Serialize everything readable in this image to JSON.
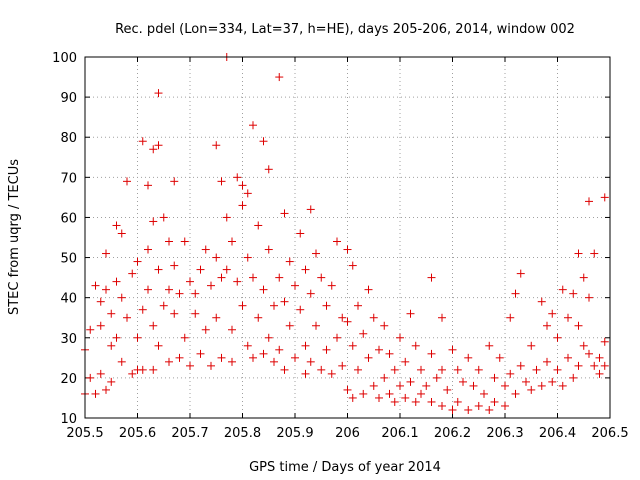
{
  "chart_data": {
    "type": "scatter",
    "title": "Rec. pdel (Lon=334, Lat=37, h=HE), days 205-206, 2014, window 002",
    "xlabel": "GPS time / Days of year 2014",
    "ylabel": "STEC from uqrg / TECUs",
    "xlim": [
      205.5,
      206.5
    ],
    "ylim": [
      10,
      100
    ],
    "xticks": [
      "205.5",
      "205.6",
      "205.7",
      "205.8",
      "205.9",
      "206",
      "206.1",
      "206.2",
      "206.3",
      "206.4",
      "206.5"
    ],
    "yticks": [
      "10",
      "20",
      "30",
      "40",
      "50",
      "60",
      "70",
      "80",
      "90",
      "100"
    ],
    "grid": true,
    "marker": "+",
    "color": "#dd0000",
    "series": [
      {
        "name": "STEC",
        "points": [
          [
            205.5,
            16
          ],
          [
            205.5,
            27
          ],
          [
            205.51,
            20
          ],
          [
            205.51,
            32
          ],
          [
            205.52,
            43
          ],
          [
            205.52,
            16
          ],
          [
            205.53,
            21
          ],
          [
            205.53,
            33
          ],
          [
            205.53,
            39
          ],
          [
            205.54,
            17
          ],
          [
            205.54,
            42
          ],
          [
            205.54,
            51
          ],
          [
            205.55,
            36
          ],
          [
            205.55,
            28
          ],
          [
            205.55,
            19
          ],
          [
            205.56,
            58
          ],
          [
            205.56,
            44
          ],
          [
            205.56,
            30
          ],
          [
            205.57,
            56
          ],
          [
            205.57,
            40
          ],
          [
            205.57,
            24
          ],
          [
            205.58,
            69
          ],
          [
            205.58,
            35
          ],
          [
            205.59,
            21
          ],
          [
            205.59,
            46
          ],
          [
            205.6,
            22
          ],
          [
            205.6,
            49
          ],
          [
            205.6,
            30
          ],
          [
            205.61,
            79
          ],
          [
            205.61,
            37
          ],
          [
            205.61,
            22
          ],
          [
            205.62,
            68
          ],
          [
            205.62,
            52
          ],
          [
            205.62,
            42
          ],
          [
            205.63,
            77
          ],
          [
            205.63,
            59
          ],
          [
            205.63,
            33
          ],
          [
            205.63,
            22
          ],
          [
            205.64,
            78
          ],
          [
            205.64,
            91
          ],
          [
            205.64,
            47
          ],
          [
            205.64,
            28
          ],
          [
            205.65,
            60
          ],
          [
            205.65,
            38
          ],
          [
            205.66,
            54
          ],
          [
            205.66,
            24
          ],
          [
            205.66,
            42
          ],
          [
            205.67,
            69
          ],
          [
            205.67,
            48
          ],
          [
            205.67,
            36
          ],
          [
            205.68,
            41
          ],
          [
            205.68,
            25
          ],
          [
            205.69,
            54
          ],
          [
            205.69,
            30
          ],
          [
            205.7,
            44
          ],
          [
            205.7,
            23
          ],
          [
            205.71,
            36
          ],
          [
            205.71,
            41
          ],
          [
            205.72,
            47
          ],
          [
            205.72,
            26
          ],
          [
            205.73,
            52
          ],
          [
            205.73,
            32
          ],
          [
            205.74,
            43
          ],
          [
            205.74,
            23
          ],
          [
            205.75,
            78
          ],
          [
            205.75,
            50
          ],
          [
            205.75,
            35
          ],
          [
            205.76,
            69
          ],
          [
            205.76,
            45
          ],
          [
            205.76,
            25
          ],
          [
            205.77,
            100
          ],
          [
            205.77,
            60
          ],
          [
            205.77,
            47
          ],
          [
            205.78,
            54
          ],
          [
            205.78,
            32
          ],
          [
            205.78,
            24
          ],
          [
            205.79,
            70
          ],
          [
            205.79,
            44
          ],
          [
            205.8,
            68
          ],
          [
            205.8,
            63
          ],
          [
            205.8,
            38
          ],
          [
            205.81,
            66
          ],
          [
            205.81,
            50
          ],
          [
            205.81,
            28
          ],
          [
            205.82,
            83
          ],
          [
            205.82,
            45
          ],
          [
            205.82,
            25
          ],
          [
            205.83,
            58
          ],
          [
            205.83,
            35
          ],
          [
            205.84,
            79
          ],
          [
            205.84,
            42
          ],
          [
            205.84,
            26
          ],
          [
            205.85,
            72
          ],
          [
            205.85,
            52
          ],
          [
            205.85,
            30
          ],
          [
            205.86,
            38
          ],
          [
            205.86,
            24
          ],
          [
            205.87,
            95
          ],
          [
            205.87,
            45
          ],
          [
            205.87,
            27
          ],
          [
            205.88,
            61
          ],
          [
            205.88,
            39
          ],
          [
            205.88,
            22
          ],
          [
            205.89,
            49
          ],
          [
            205.89,
            33
          ],
          [
            205.9,
            43
          ],
          [
            205.9,
            25
          ],
          [
            205.91,
            56
          ],
          [
            205.91,
            37
          ],
          [
            205.92,
            47
          ],
          [
            205.92,
            28
          ],
          [
            205.92,
            21
          ],
          [
            205.93,
            62
          ],
          [
            205.93,
            41
          ],
          [
            205.93,
            24
          ],
          [
            205.94,
            51
          ],
          [
            205.94,
            33
          ],
          [
            205.95,
            45
          ],
          [
            205.95,
            22
          ],
          [
            205.96,
            38
          ],
          [
            205.96,
            27
          ],
          [
            205.97,
            43
          ],
          [
            205.97,
            21
          ],
          [
            205.98,
            54
          ],
          [
            205.98,
            30
          ],
          [
            205.99,
            35
          ],
          [
            205.99,
            23
          ],
          [
            206.0,
            52
          ],
          [
            206.0,
            34
          ],
          [
            206.0,
            17
          ],
          [
            206.01,
            48
          ],
          [
            206.01,
            28
          ],
          [
            206.01,
            15
          ],
          [
            206.02,
            38
          ],
          [
            206.02,
            22
          ],
          [
            206.03,
            31
          ],
          [
            206.03,
            16
          ],
          [
            206.04,
            42
          ],
          [
            206.04,
            25
          ],
          [
            206.05,
            35
          ],
          [
            206.05,
            18
          ],
          [
            206.06,
            27
          ],
          [
            206.06,
            15
          ],
          [
            206.07,
            33
          ],
          [
            206.07,
            20
          ],
          [
            206.08,
            26
          ],
          [
            206.08,
            16
          ],
          [
            206.09,
            22
          ],
          [
            206.09,
            14
          ],
          [
            206.1,
            30
          ],
          [
            206.1,
            18
          ],
          [
            206.11,
            24
          ],
          [
            206.11,
            15
          ],
          [
            206.12,
            36
          ],
          [
            206.12,
            19
          ],
          [
            206.13,
            28
          ],
          [
            206.13,
            14
          ],
          [
            206.14,
            22
          ],
          [
            206.14,
            16
          ],
          [
            206.15,
            18
          ],
          [
            206.16,
            45
          ],
          [
            206.16,
            26
          ],
          [
            206.16,
            14
          ],
          [
            206.17,
            20
          ],
          [
            206.18,
            35
          ],
          [
            206.18,
            22
          ],
          [
            206.18,
            13
          ],
          [
            206.19,
            17
          ],
          [
            206.2,
            27
          ],
          [
            206.2,
            12
          ],
          [
            206.21,
            22
          ],
          [
            206.21,
            14
          ],
          [
            206.22,
            19
          ],
          [
            206.23,
            25
          ],
          [
            206.23,
            12
          ],
          [
            206.24,
            18
          ],
          [
            206.25,
            22
          ],
          [
            206.25,
            13
          ],
          [
            206.26,
            16
          ],
          [
            206.27,
            28
          ],
          [
            206.27,
            12
          ],
          [
            206.28,
            20
          ],
          [
            206.28,
            14
          ],
          [
            206.29,
            25
          ],
          [
            206.3,
            18
          ],
          [
            206.3,
            13
          ],
          [
            206.31,
            35
          ],
          [
            206.31,
            21
          ],
          [
            206.32,
            41
          ],
          [
            206.32,
            16
          ],
          [
            206.33,
            46
          ],
          [
            206.33,
            23
          ],
          [
            206.34,
            19
          ],
          [
            206.35,
            28
          ],
          [
            206.35,
            17
          ],
          [
            206.36,
            22
          ],
          [
            206.37,
            39
          ],
          [
            206.37,
            18
          ],
          [
            206.38,
            33
          ],
          [
            206.38,
            24
          ],
          [
            206.39,
            36
          ],
          [
            206.39,
            19
          ],
          [
            206.4,
            30
          ],
          [
            206.4,
            22
          ],
          [
            206.41,
            42
          ],
          [
            206.41,
            18
          ],
          [
            206.42,
            35
          ],
          [
            206.42,
            25
          ],
          [
            206.43,
            41
          ],
          [
            206.43,
            20
          ],
          [
            206.44,
            51
          ],
          [
            206.44,
            33
          ],
          [
            206.44,
            23
          ],
          [
            206.45,
            45
          ],
          [
            206.45,
            28
          ],
          [
            206.46,
            64
          ],
          [
            206.46,
            40
          ],
          [
            206.46,
            26
          ],
          [
            206.47,
            51
          ],
          [
            206.47,
            23
          ],
          [
            206.48,
            25
          ],
          [
            206.48,
            21
          ],
          [
            206.49,
            65
          ],
          [
            206.49,
            29
          ],
          [
            206.49,
            23
          ]
        ]
      }
    ]
  }
}
